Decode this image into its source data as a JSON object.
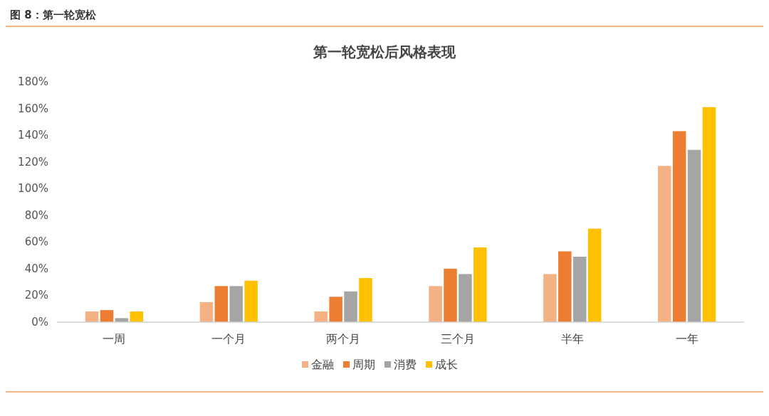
{
  "chart_data": {
    "type": "bar",
    "title": "图 8：第一轮宽松",
    "subtitle": "第一轮宽松后风格表现",
    "categories": [
      "一周",
      "一个月",
      "两个月",
      "三个月",
      "半年",
      "一年"
    ],
    "series": [
      {
        "name": "金融",
        "color": "#f4b183",
        "values": [
          8,
          15,
          8,
          27,
          36,
          117
        ]
      },
      {
        "name": "周期",
        "color": "#ed7d31",
        "values": [
          9,
          27,
          19,
          40,
          53,
          143
        ]
      },
      {
        "name": "消费",
        "color": "#a5a5a5",
        "values": [
          3,
          27,
          23,
          36,
          49,
          129
        ]
      },
      {
        "name": "成长",
        "color": "#ffc000",
        "values": [
          8,
          31,
          33,
          56,
          70,
          161
        ]
      }
    ],
    "ylim": [
      0,
      180
    ],
    "yticks": [
      {
        "value": 0,
        "label": "0%"
      },
      {
        "value": 20,
        "label": "20%"
      },
      {
        "value": 40,
        "label": "40%"
      },
      {
        "value": 60,
        "label": "60%"
      },
      {
        "value": 80,
        "label": "80%"
      },
      {
        "value": 100,
        "label": "100%"
      },
      {
        "value": 120,
        "label": "120%"
      },
      {
        "value": 140,
        "label": "140%"
      },
      {
        "value": 160,
        "label": "160%"
      },
      {
        "value": 180,
        "label": "180%"
      }
    ],
    "grid": false,
    "legend": "bottom"
  }
}
